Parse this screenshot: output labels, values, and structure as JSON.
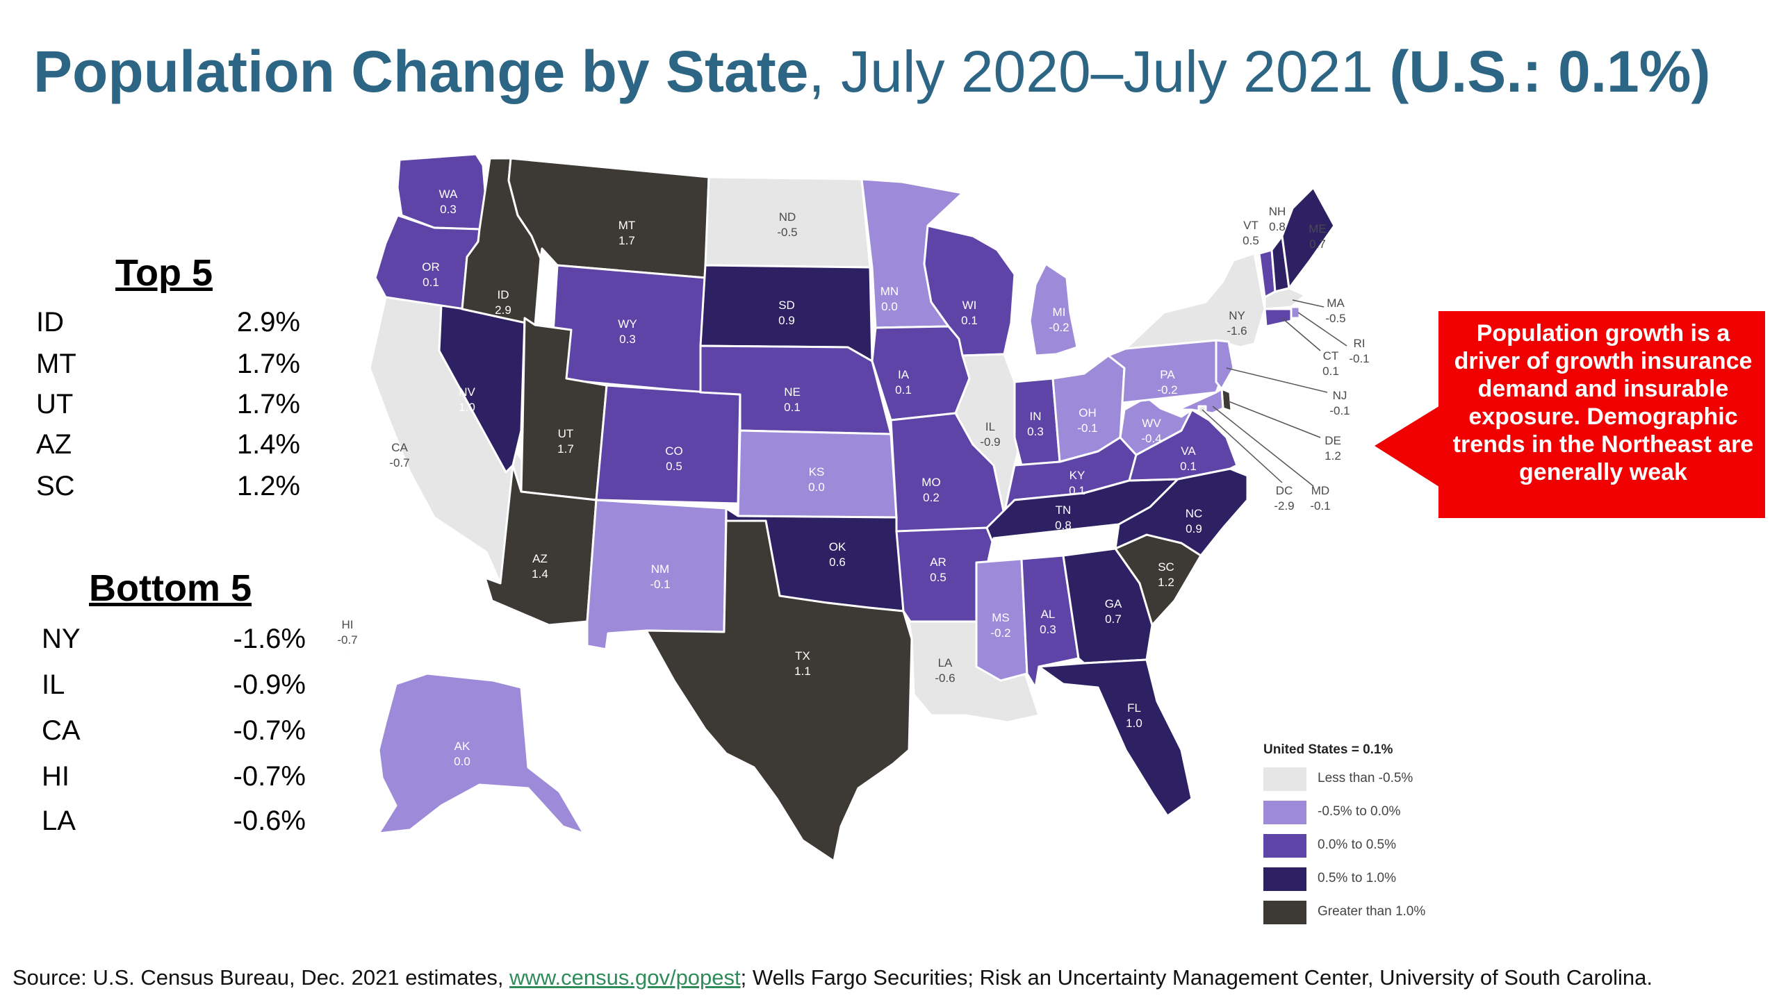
{
  "title": {
    "bold_part": "Population Change by State",
    "normal_part": ", July 2020–July 2021 ",
    "bold_suffix": "(U.S.: 0.1%)"
  },
  "top5": {
    "heading": "Top 5",
    "rows": [
      {
        "state": "ID",
        "value": "2.9%"
      },
      {
        "state": "MT",
        "value": "1.7%"
      },
      {
        "state": "UT",
        "value": "1.7%"
      },
      {
        "state": "AZ",
        "value": "1.4%"
      },
      {
        "state": "SC",
        "value": "1.2%"
      }
    ]
  },
  "bottom5": {
    "heading": "Bottom 5",
    "rows": [
      {
        "state": "NY",
        "value": "-1.6%"
      },
      {
        "state": "IL",
        "value": "-0.9%"
      },
      {
        "state": "CA",
        "value": "-0.7%"
      },
      {
        "state": "HI",
        "value": "-0.7%"
      },
      {
        "state": "LA",
        "value": "-0.6%"
      }
    ]
  },
  "callout": {
    "text": "Population growth is a driver of growth insurance demand and insurable exposure. Demographic trends in the Northeast are generally weak",
    "color": "#f00000"
  },
  "legend": {
    "title": "United States = 0.1%",
    "items": [
      {
        "label": "Less than -0.5%",
        "color": "#e6e6e6"
      },
      {
        "label": "-0.5% to 0.0%",
        "color": "#9d8bd9"
      },
      {
        "label": "0.0% to 0.5%",
        "color": "#5e44a6"
      },
      {
        "label": "0.5% to 1.0%",
        "color": "#2e2163"
      },
      {
        "label": "Greater than 1.0%",
        "color": "#3d3a36"
      }
    ]
  },
  "states": [
    {
      "abbr": "WA",
      "value": "0.3",
      "bin": 2
    },
    {
      "abbr": "OR",
      "value": "0.1",
      "bin": 2
    },
    {
      "abbr": "CA",
      "value": "-0.7",
      "bin": 0
    },
    {
      "abbr": "NV",
      "value": "1.0",
      "bin": 3
    },
    {
      "abbr": "ID",
      "value": "2.9",
      "bin": 4
    },
    {
      "abbr": "MT",
      "value": "1.7",
      "bin": 4
    },
    {
      "abbr": "WY",
      "value": "0.3",
      "bin": 2
    },
    {
      "abbr": "UT",
      "value": "1.7",
      "bin": 4
    },
    {
      "abbr": "AZ",
      "value": "1.4",
      "bin": 4
    },
    {
      "abbr": "CO",
      "value": "0.5",
      "bin": 2
    },
    {
      "abbr": "NM",
      "value": "-0.1",
      "bin": 1
    },
    {
      "abbr": "ND",
      "value": "-0.5",
      "bin": 0
    },
    {
      "abbr": "SD",
      "value": "0.9",
      "bin": 3
    },
    {
      "abbr": "NE",
      "value": "0.1",
      "bin": 2
    },
    {
      "abbr": "KS",
      "value": "0.0",
      "bin": 1
    },
    {
      "abbr": "OK",
      "value": "0.6",
      "bin": 3
    },
    {
      "abbr": "TX",
      "value": "1.1",
      "bin": 4
    },
    {
      "abbr": "MN",
      "value": "0.0",
      "bin": 1
    },
    {
      "abbr": "IA",
      "value": "0.1",
      "bin": 2
    },
    {
      "abbr": "MO",
      "value": "0.2",
      "bin": 2
    },
    {
      "abbr": "AR",
      "value": "0.5",
      "bin": 2
    },
    {
      "abbr": "LA",
      "value": "-0.6",
      "bin": 0
    },
    {
      "abbr": "WI",
      "value": "0.1",
      "bin": 2
    },
    {
      "abbr": "IL",
      "value": "-0.9",
      "bin": 0
    },
    {
      "abbr": "MI",
      "value": "-0.2",
      "bin": 1
    },
    {
      "abbr": "IN",
      "value": "0.3",
      "bin": 2
    },
    {
      "abbr": "OH",
      "value": "-0.1",
      "bin": 1
    },
    {
      "abbr": "KY",
      "value": "0.1",
      "bin": 2
    },
    {
      "abbr": "TN",
      "value": "0.8",
      "bin": 3
    },
    {
      "abbr": "MS",
      "value": "-0.2",
      "bin": 1
    },
    {
      "abbr": "AL",
      "value": "0.3",
      "bin": 2
    },
    {
      "abbr": "GA",
      "value": "0.7",
      "bin": 3
    },
    {
      "abbr": "FL",
      "value": "1.0",
      "bin": 3
    },
    {
      "abbr": "SC",
      "value": "1.2",
      "bin": 4
    },
    {
      "abbr": "NC",
      "value": "0.9",
      "bin": 3
    },
    {
      "abbr": "VA",
      "value": "0.1",
      "bin": 2
    },
    {
      "abbr": "WV",
      "value": "-0.4",
      "bin": 1
    },
    {
      "abbr": "PA",
      "value": "-0.2",
      "bin": 1
    },
    {
      "abbr": "NY",
      "value": "-1.6",
      "bin": 0
    },
    {
      "abbr": "VT",
      "value": "0.5",
      "bin": 2
    },
    {
      "abbr": "NH",
      "value": "0.8",
      "bin": 3
    },
    {
      "abbr": "ME",
      "value": "0.7",
      "bin": 3
    },
    {
      "abbr": "MA",
      "value": "-0.5",
      "bin": 0
    },
    {
      "abbr": "RI",
      "value": "-0.1",
      "bin": 1
    },
    {
      "abbr": "CT",
      "value": "0.1",
      "bin": 2
    },
    {
      "abbr": "NJ",
      "value": "-0.1",
      "bin": 1
    },
    {
      "abbr": "DE",
      "value": "1.2",
      "bin": 4
    },
    {
      "abbr": "MD",
      "value": "-0.1",
      "bin": 1
    },
    {
      "abbr": "DC",
      "value": "-2.9",
      "bin": 0
    },
    {
      "abbr": "AK",
      "value": "0.0",
      "bin": 1
    },
    {
      "abbr": "HI",
      "value": "-0.7",
      "bin": 0
    }
  ],
  "source": {
    "prefix": "Source: U.S. Census Bureau, Dec. 2021 estimates, ",
    "link": "www.census.gov/popest",
    "suffix": "; Wells Fargo Securities; Risk an Uncertainty Management Center, University of South Carolina."
  }
}
